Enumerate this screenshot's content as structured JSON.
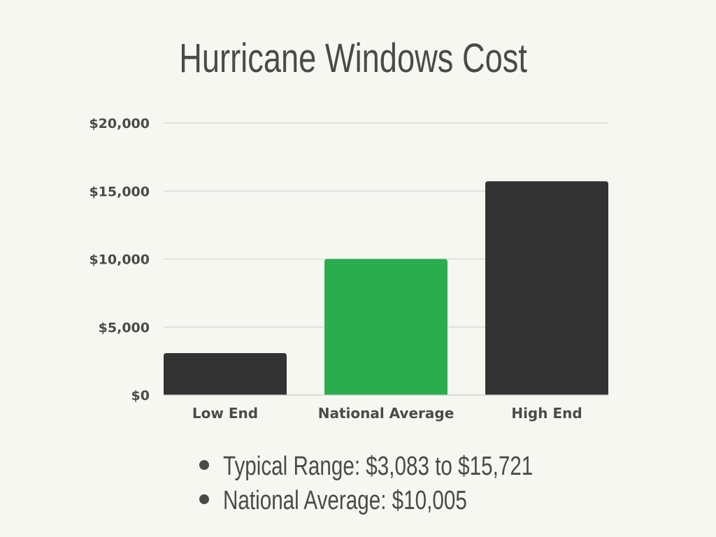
{
  "chart_data": {
    "type": "bar",
    "title": "Hurricane Windows Cost",
    "categories": [
      "Low End",
      "National Average",
      "High End"
    ],
    "values": [
      3083,
      10005,
      15721
    ],
    "colors": [
      "#333333",
      "#2aad4f",
      "#333333"
    ],
    "ylim": [
      0,
      20000
    ],
    "yticks": [
      0,
      5000,
      10000,
      15000,
      20000
    ],
    "ytick_labels": [
      "$0",
      "$5,000",
      "$10,000",
      "$15,000",
      "$20,000"
    ],
    "grid": true,
    "xlabel": "",
    "ylabel": ""
  },
  "notes": [
    "Typical Range: $3,083 to $15,721",
    "National Average: $10,005"
  ]
}
